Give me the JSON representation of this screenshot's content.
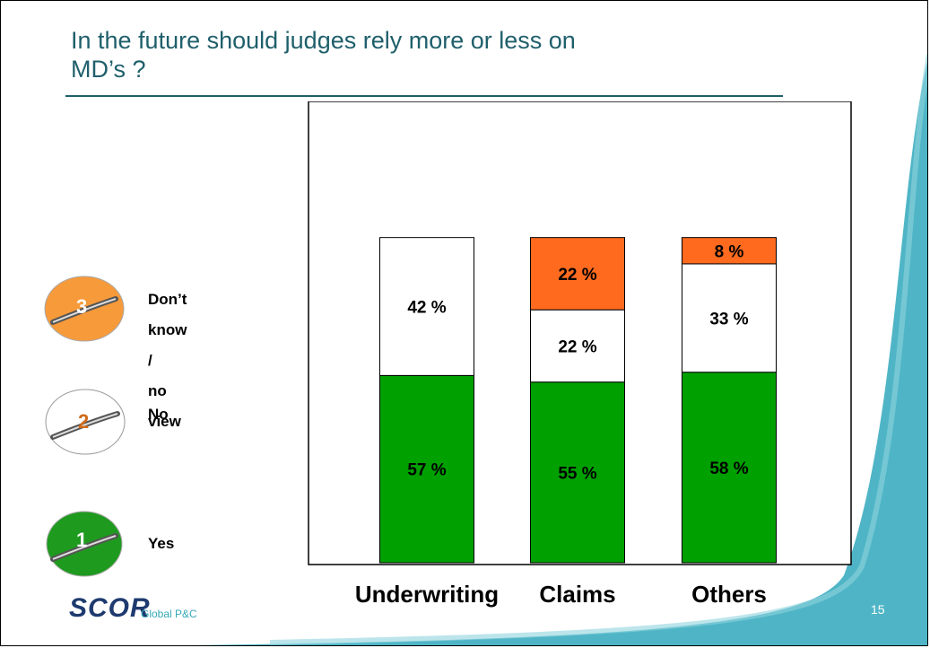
{
  "slide": {
    "title_line1": "In the future should judges rely more or less on",
    "title_line2": "MD’s ?",
    "page_number": "15",
    "logo_text": "SCOR",
    "logo_subtext": "Global P&C"
  },
  "legend": [
    {
      "number": "3",
      "label": "Don’t know /\nno view",
      "color": "#f79a3a",
      "number_color": "#ffffff"
    },
    {
      "number": "2",
      "label": "No",
      "color": "#ffffff",
      "number_color": "#d06a1a"
    },
    {
      "number": "1",
      "label": "Yes",
      "color": "#1e9a1e",
      "number_color": "#ffffff"
    }
  ],
  "chart_data": {
    "type": "bar",
    "stacked": true,
    "categories": [
      "Underwriting",
      "Claims",
      "Others"
    ],
    "series": [
      {
        "name": "Yes",
        "color": "#00a000",
        "values": [
          57,
          55,
          58
        ],
        "labels": [
          "57 %",
          "55 %",
          "58 %"
        ]
      },
      {
        "name": "No",
        "color": "#ffffff",
        "values": [
          42,
          22,
          33
        ],
        "labels": [
          "42 %",
          "22 %",
          "33 %"
        ]
      },
      {
        "name": "Don’t know / no view",
        "color": "#ff6a1f",
        "values": [
          0,
          22,
          8
        ],
        "labels": [
          "",
          "22 %",
          "8 %"
        ]
      }
    ],
    "ylim": [
      0,
      100
    ],
    "title": "",
    "xlabel": "",
    "ylabel": "",
    "grid": false
  }
}
